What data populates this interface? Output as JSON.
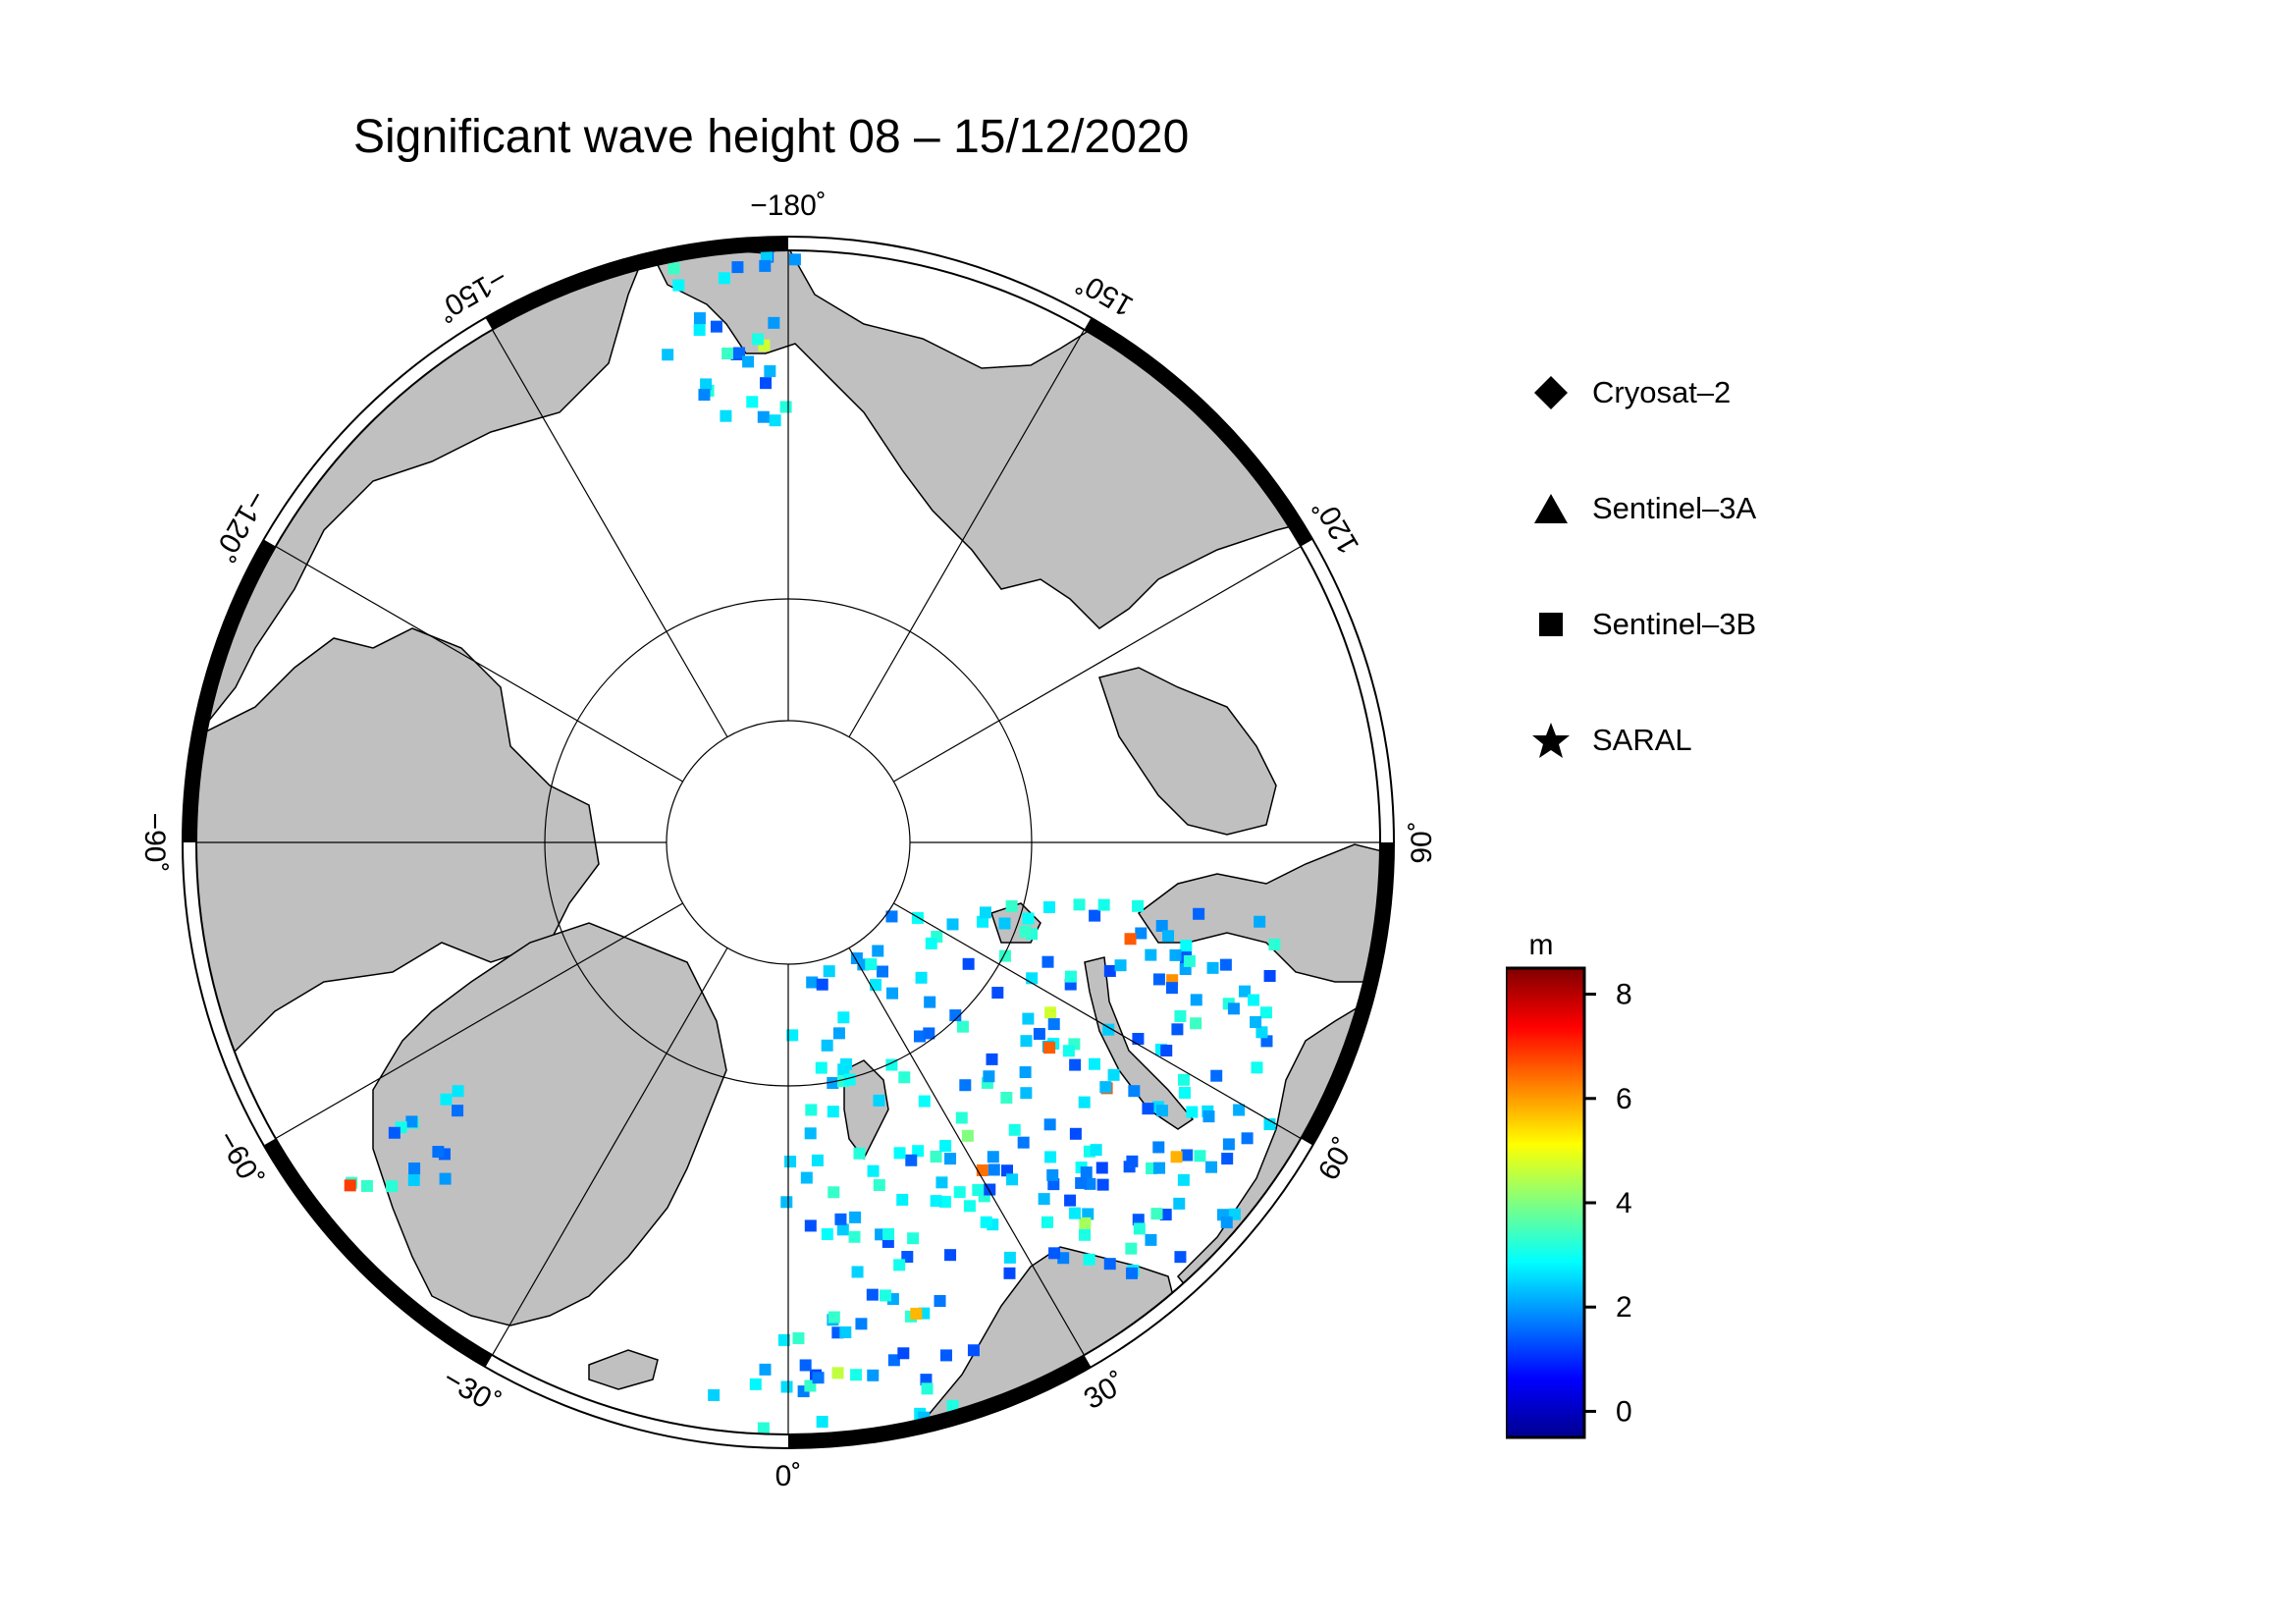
{
  "title": "Significant wave height 08 – 15/12/2020",
  "map": {
    "projection": "north-polar-stereographic",
    "longitude_labels": [
      {
        "text": "−180˚",
        "lon": 180
      },
      {
        "text": "150˚",
        "lon": 150
      },
      {
        "text": "120˚",
        "lon": 120
      },
      {
        "text": "90˚",
        "lon": 90
      },
      {
        "text": "60˚",
        "lon": 60
      },
      {
        "text": "30˚",
        "lon": 30
      },
      {
        "text": "0˚",
        "lon": 0
      },
      {
        "text": "−30˚",
        "lon": -30
      },
      {
        "text": "−60˚",
        "lon": -60
      },
      {
        "text": "−90˚",
        "lon": -90
      },
      {
        "text": "−120˚",
        "lon": -120
      },
      {
        "text": "−150˚",
        "lon": -150
      }
    ],
    "land_color": "#c0c0c0",
    "ocean_color": "#ffffff",
    "grid": true
  },
  "legend": [
    {
      "label": "Cryosat–2",
      "icon": "diamond-icon"
    },
    {
      "label": "Sentinel–3A",
      "icon": "triangle-icon"
    },
    {
      "label": "Sentinel–3B",
      "icon": "square-icon"
    },
    {
      "label": "SARAL",
      "icon": "star-icon"
    }
  ],
  "colorbar": {
    "unit": "m",
    "ticks": [
      "8",
      "6",
      "4",
      "2",
      "0"
    ],
    "range": [
      -0.5,
      8.5
    ],
    "colors": [
      "#00008f",
      "#0000ff",
      "#0080ff",
      "#00ffff",
      "#80ff80",
      "#ffff00",
      "#ff8000",
      "#ff0000",
      "#800000"
    ]
  }
}
